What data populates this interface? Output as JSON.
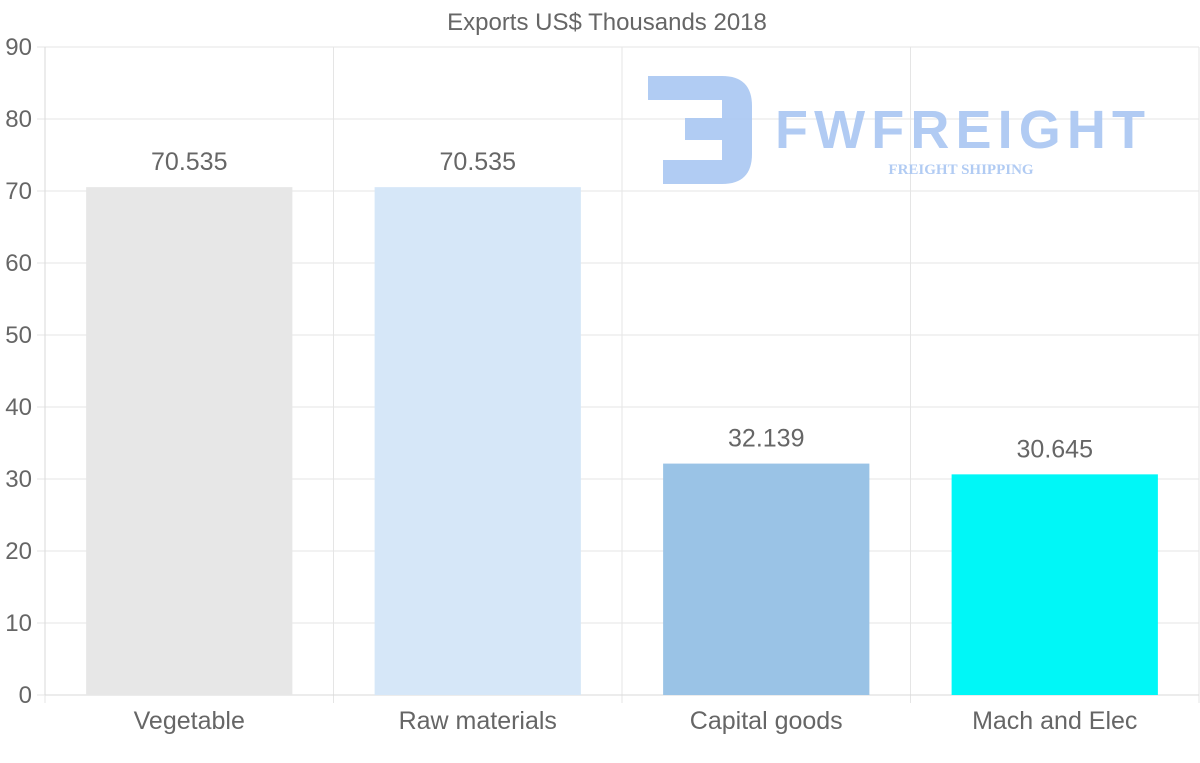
{
  "chart_data": {
    "type": "bar",
    "title": "Exports US$ Thousands 2018",
    "categories": [
      "Vegetable",
      "Raw materials",
      "Capital goods",
      "Mach and Elec"
    ],
    "values": [
      70.535,
      70.535,
      32.139,
      30.645
    ],
    "value_labels": [
      "70.535",
      "70.535",
      "32.139",
      "30.645"
    ],
    "bar_colors": [
      "#e7e7e7",
      "#d6e7f8",
      "#9ac3e6",
      "#00f7f7"
    ],
    "ylim": [
      0,
      90
    ],
    "yticks": [
      0,
      10,
      20,
      30,
      40,
      50,
      60,
      70,
      80,
      90
    ],
    "grid": true,
    "xlabel": "",
    "ylabel": ""
  },
  "watermark": {
    "brand": "FWFREIGHT",
    "tagline": "FREIGHT SHIPPING",
    "color": "#a9c6f2"
  }
}
